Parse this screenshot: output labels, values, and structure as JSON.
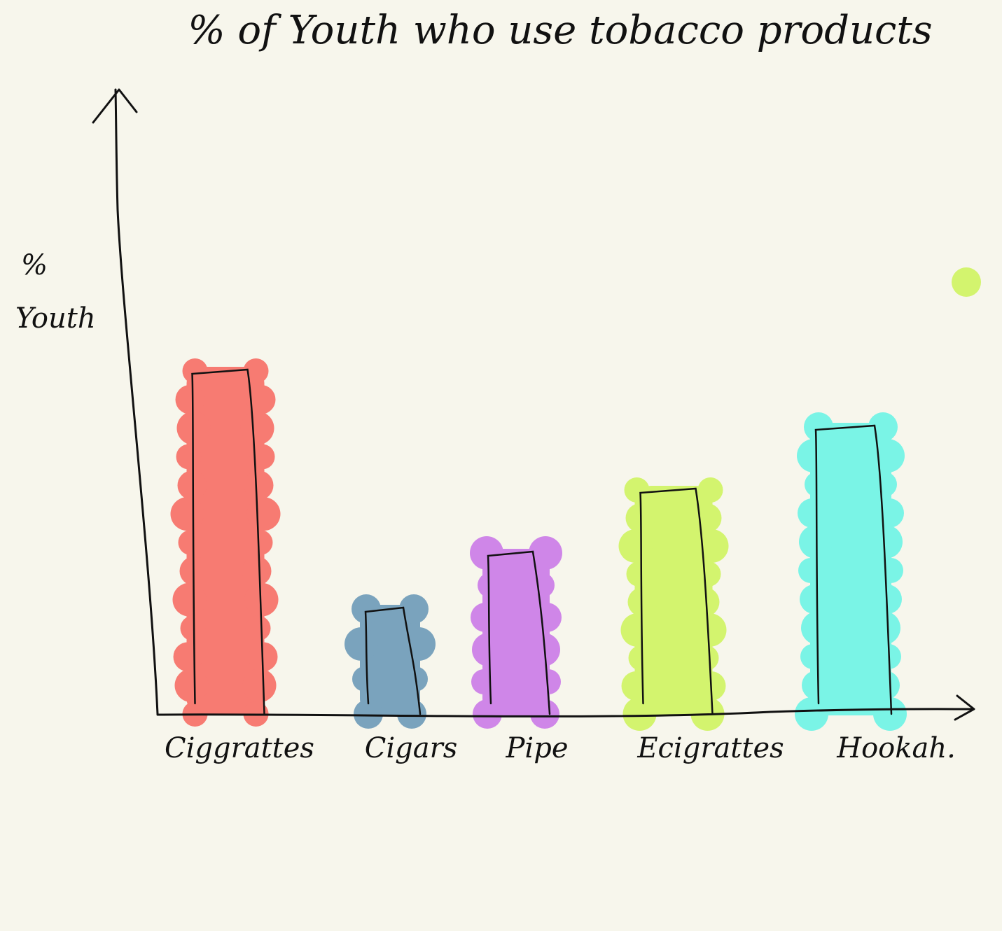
{
  "chart_data": {
    "type": "bar",
    "title": "% of Youth who use tobacco products",
    "ylabel": "% Youth",
    "xlabel": "",
    "categories": [
      "Ciggrattes",
      "Cigars",
      "Pipe",
      "Ecigrattes",
      "Hookah."
    ],
    "values": [
      49,
      15,
      23,
      32,
      41
    ],
    "ylim": [
      0,
      90
    ],
    "colors": [
      "#f77b72",
      "#7aa3bd",
      "#cf86e8",
      "#d3f46e",
      "#7af4e6"
    ],
    "grid": false,
    "legend": "none"
  },
  "stray_dot_color": "#d3f46e",
  "axis_color": "#111111"
}
